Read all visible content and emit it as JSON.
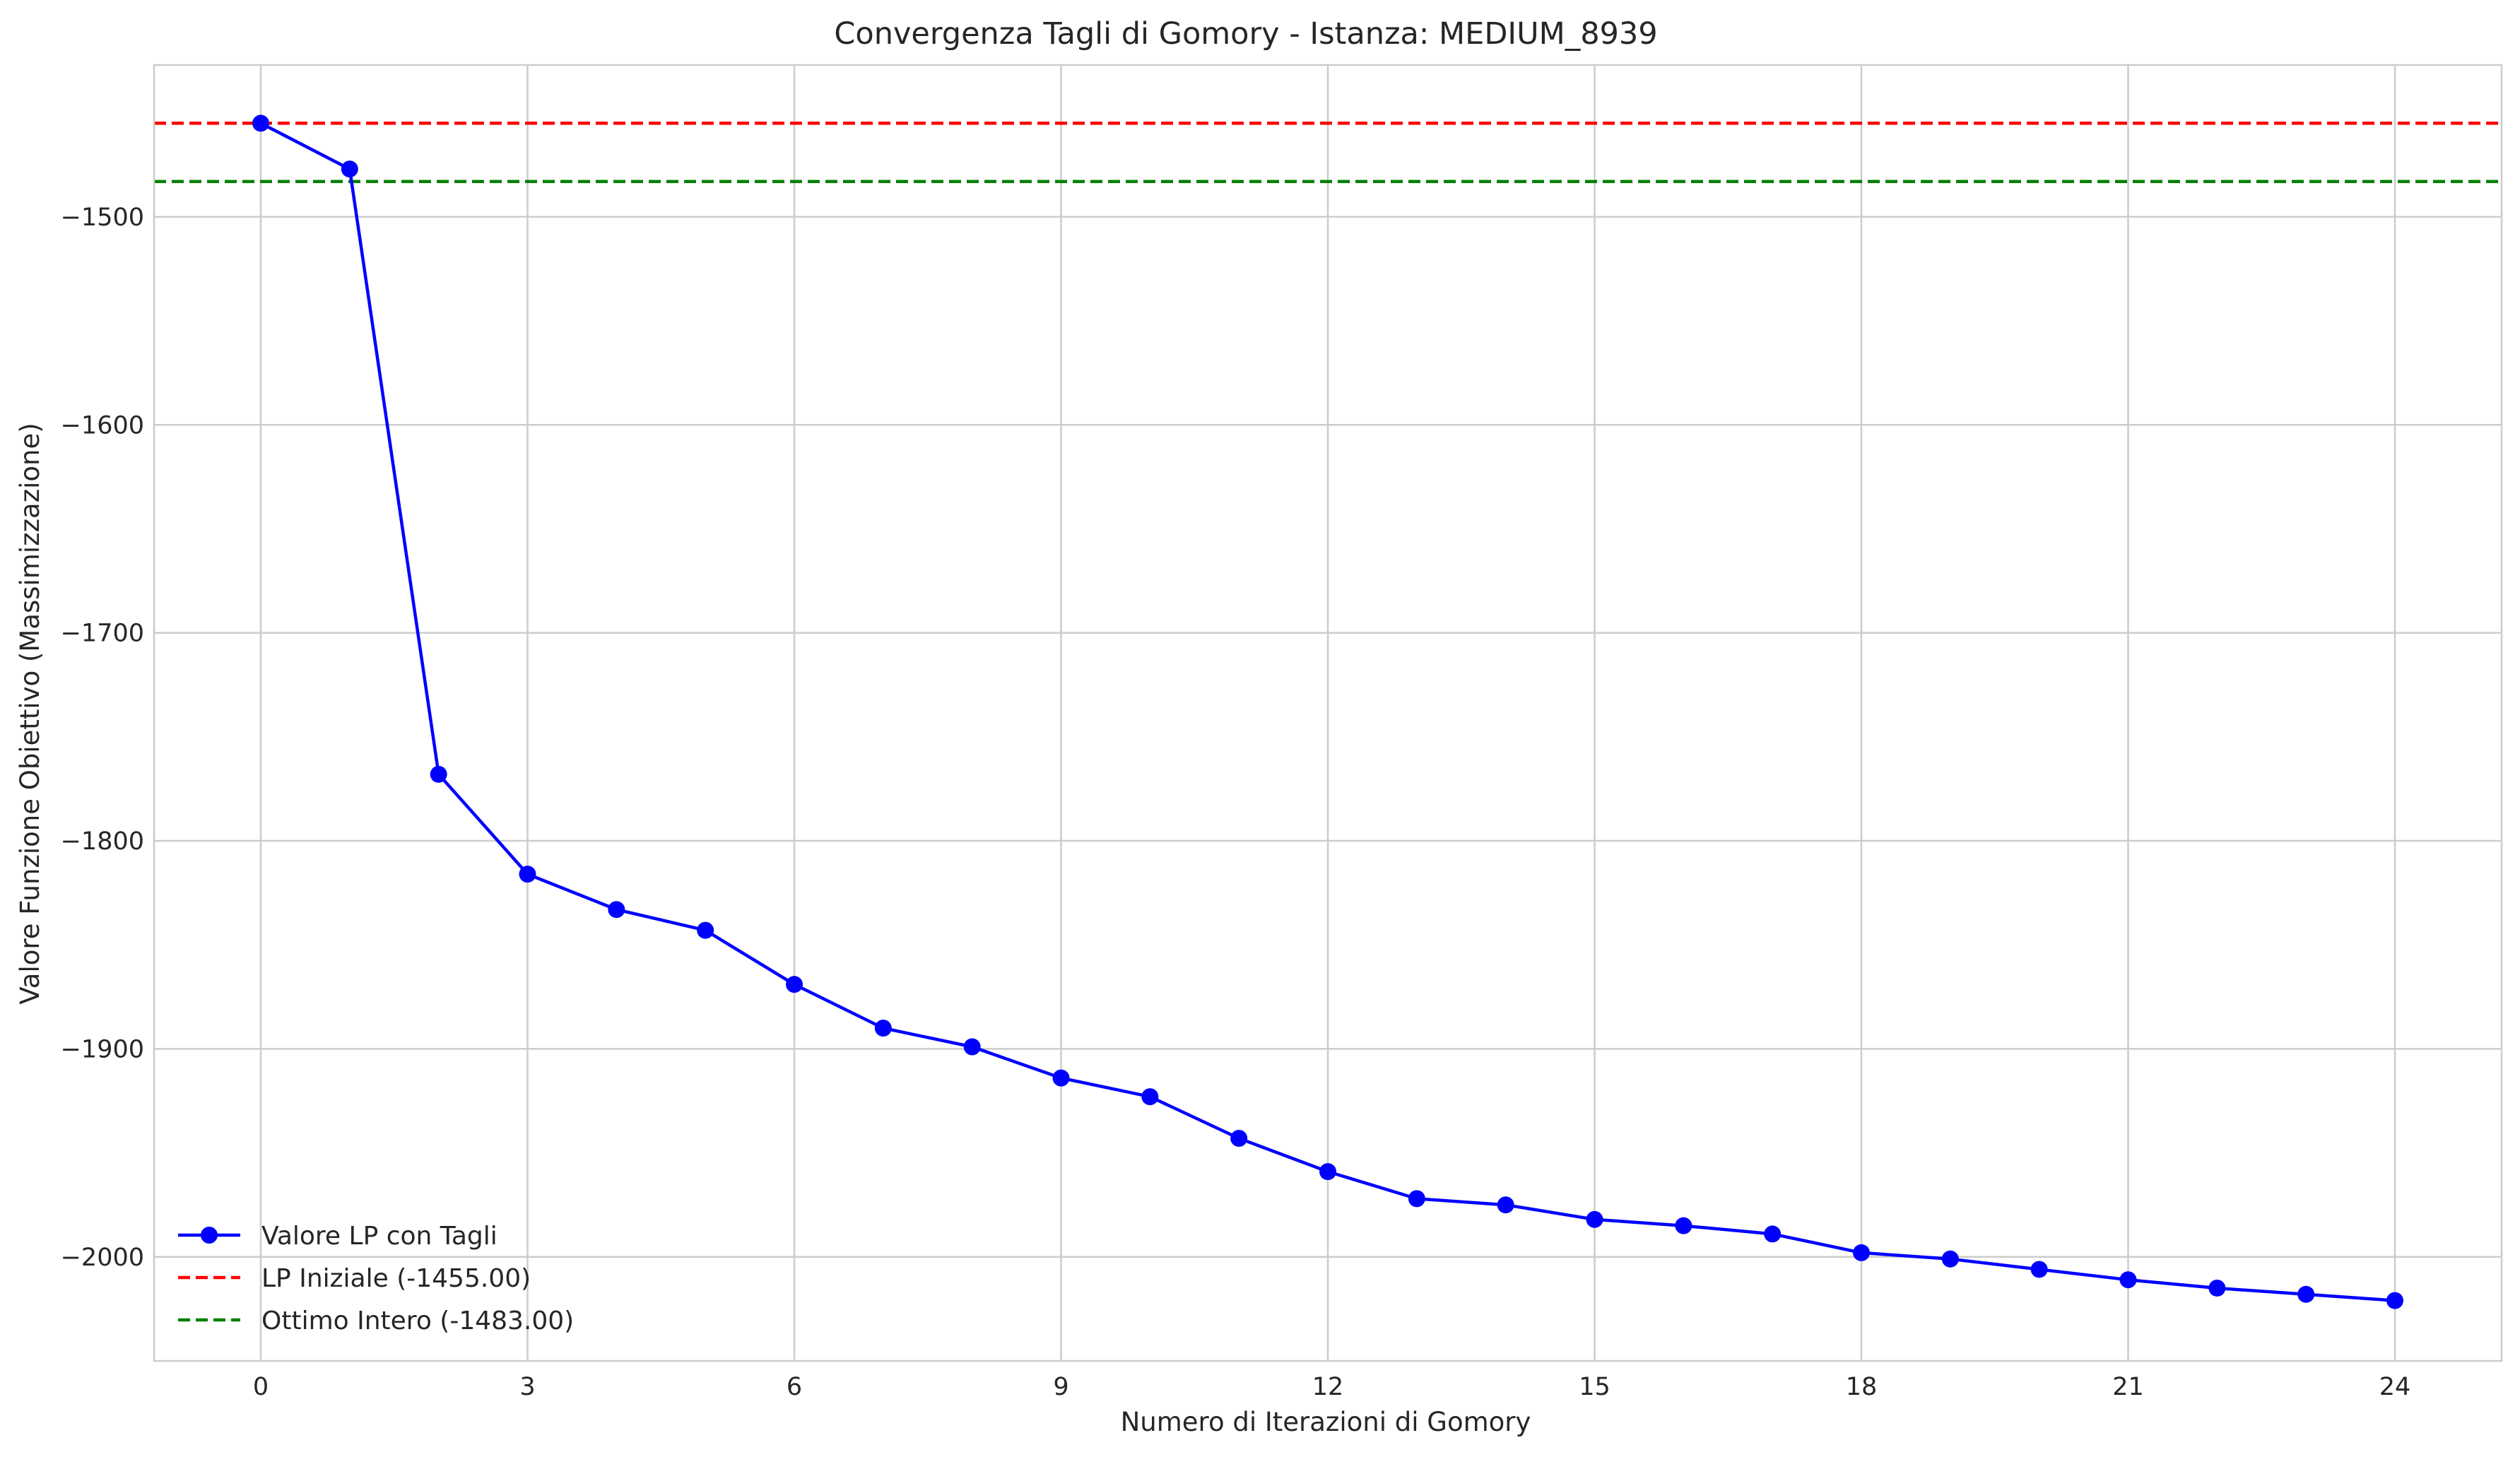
{
  "chart_data": {
    "type": "line",
    "title": "Convergenza Tagli di Gomory - Istanza: MEDIUM_8939",
    "xlabel": "Numero di Iterazioni di Gomory",
    "ylabel": "Valore Funzione Obiettivo (Massimizzazione)",
    "xlim": [
      -1.2,
      25.2
    ],
    "ylim": [
      -2050,
      -1427
    ],
    "x_ticks": [
      0,
      3,
      6,
      9,
      12,
      15,
      18,
      21,
      24
    ],
    "x_tick_labels": [
      "0",
      "3",
      "6",
      "9",
      "12",
      "15",
      "18",
      "21",
      "24"
    ],
    "y_ticks": [
      -2000,
      -1900,
      -1800,
      -1700,
      -1600,
      -1500
    ],
    "y_tick_labels": [
      "−2000",
      "−1900",
      "−1800",
      "−1700",
      "−1600",
      "−1500"
    ],
    "grid": true,
    "legend_position": "lower-left",
    "series": [
      {
        "name": "Valore LP con Tagli",
        "color": "#0000ff",
        "style": "solid-with-markers",
        "x": [
          0,
          1,
          2,
          3,
          4,
          5,
          6,
          7,
          8,
          9,
          10,
          11,
          12,
          13,
          14,
          15,
          16,
          17,
          18,
          19,
          20,
          21,
          22,
          23,
          24
        ],
        "y": [
          -1455,
          -1477,
          -1768,
          -1816,
          -1833,
          -1843,
          -1869,
          -1890,
          -1899,
          -1914,
          -1923,
          -1943,
          -1959,
          -1972,
          -1975,
          -1982,
          -1985,
          -1989,
          -1998,
          -2001,
          -2006,
          -2011,
          -2015,
          -2018,
          -2021
        ]
      }
    ],
    "reference_lines": [
      {
        "name": "LP Iniziale (-1455.00)",
        "y": -1455,
        "color": "#ff0000",
        "style": "dashed"
      },
      {
        "name": "Ottimo Intero (-1483.00)",
        "y": -1483,
        "color": "#008000",
        "style": "dashed"
      }
    ]
  }
}
